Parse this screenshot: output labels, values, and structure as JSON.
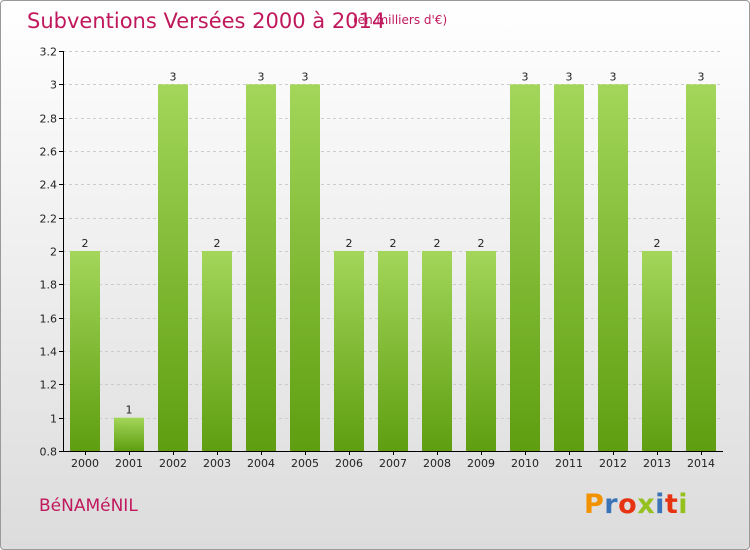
{
  "title": "Subventions Versées 2000 à 2014",
  "subtitle": "(en milliers d'€)",
  "place": "BéNAMéNIL",
  "logo": {
    "text": "Proxiti",
    "colors": [
      "#f39200",
      "#3b73b9",
      "#e63312",
      "#95c11f",
      "#3b73b9",
      "#e63312",
      "#95c11f"
    ]
  },
  "colors": {
    "title": "#c0185c",
    "bar_light": "#a3d65a",
    "bar_dark": "#5e9e10",
    "grid": "#cccccc",
    "axis": "#000000"
  },
  "chart_data": {
    "type": "bar",
    "categories": [
      "2000",
      "2001",
      "2002",
      "2003",
      "2004",
      "2005",
      "2006",
      "2007",
      "2008",
      "2009",
      "2010",
      "2011",
      "2012",
      "2013",
      "2014"
    ],
    "values": [
      2,
      1,
      3,
      2,
      3,
      3,
      2,
      2,
      2,
      2,
      3,
      3,
      3,
      2,
      3
    ],
    "data_labels": [
      "2",
      "1",
      "3",
      "2",
      "3",
      "3",
      "2",
      "2",
      "2",
      "2",
      "3",
      "3",
      "3",
      "2",
      "3"
    ],
    "ylim": [
      0.8,
      3.2
    ],
    "yticks": [
      0.8,
      1,
      1.2,
      1.4,
      1.6,
      1.8,
      2,
      2.2,
      2.4,
      2.6,
      2.8,
      3,
      3.2
    ],
    "ytick_labels": [
      "0.8",
      "1",
      "1.2",
      "1.4",
      "1.6",
      "1.8",
      "2",
      "2.2",
      "2.4",
      "2.6",
      "2.8",
      "3",
      "3.2"
    ],
    "grid": true,
    "xlabel": "",
    "ylabel": ""
  }
}
